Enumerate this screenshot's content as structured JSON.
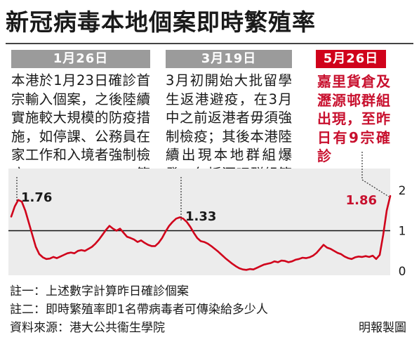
{
  "title": "新冠病毒本地個案即時繁殖率",
  "panels": [
    {
      "date": "1月26日",
      "note": "本港於1月23日確診首宗輸入個案，之後陸續實施較大規模的防疫措施，如停課、公務員在家工作和入境者強制檢疫等"
    },
    {
      "date": "3月19日",
      "note": "3月初開始大批留學生返港避疫，在3月中之前返港者毋須強制檢疫；其後本港陸續出現本地群組爆發，包括酒吧群組等"
    },
    {
      "date": "5月26日",
      "note": "嘉里貨倉及瀝源邨群組出現，至昨日有9宗確診"
    }
  ],
  "colors": {
    "line": "#d0021b",
    "red_text": "#c8102e",
    "panel_grey": "#9b9b9b",
    "panel_red": "#d0021b",
    "plot_bg": "#ececec"
  },
  "chart_data": {
    "type": "line",
    "ylim": [
      0,
      2
    ],
    "yticks": [
      "0",
      "1",
      "2"
    ],
    "reference_line": 1,
    "annotations": [
      {
        "label": "1.76",
        "index": 2,
        "value": 1.76
      },
      {
        "label": "1.33",
        "index": 48,
        "value": 1.33
      },
      {
        "label": "1.86",
        "index": 108,
        "value": 1.86
      }
    ],
    "values": [
      1.35,
      1.6,
      1.76,
      1.72,
      1.5,
      1.2,
      0.9,
      0.6,
      0.42,
      0.34,
      0.3,
      0.31,
      0.35,
      0.32,
      0.36,
      0.4,
      0.44,
      0.46,
      0.44,
      0.5,
      0.52,
      0.5,
      0.55,
      0.6,
      0.68,
      0.78,
      0.9,
      1.02,
      1.12,
      1.05,
      1.0,
      1.05,
      0.95,
      0.85,
      0.82,
      0.78,
      0.72,
      0.76,
      0.7,
      0.65,
      0.62,
      0.62,
      0.7,
      0.82,
      0.98,
      1.12,
      1.22,
      1.3,
      1.33,
      1.3,
      1.22,
      1.1,
      0.95,
      0.82,
      0.74,
      0.72,
      0.68,
      0.62,
      0.55,
      0.48,
      0.4,
      0.32,
      0.25,
      0.18,
      0.12,
      0.07,
      0.04,
      0.03,
      0.05,
      0.04,
      0.08,
      0.12,
      0.16,
      0.18,
      0.2,
      0.24,
      0.22,
      0.26,
      0.25,
      0.22,
      0.24,
      0.28,
      0.3,
      0.33,
      0.32,
      0.34,
      0.38,
      0.45,
      0.55,
      0.65,
      0.58,
      0.55,
      0.5,
      0.45,
      0.42,
      0.36,
      0.32,
      0.3,
      0.34,
      0.36,
      0.35,
      0.37,
      0.35,
      0.38,
      0.3,
      0.4,
      0.9,
      1.5,
      1.86
    ]
  },
  "footer": [
    "註一：上述數字計算昨日確診個案",
    "註二：即時繁殖率即1名帶病毒者可傳染給多少人",
    "資料來源：港大公共衞生學院"
  ],
  "credit": "明報製圖"
}
